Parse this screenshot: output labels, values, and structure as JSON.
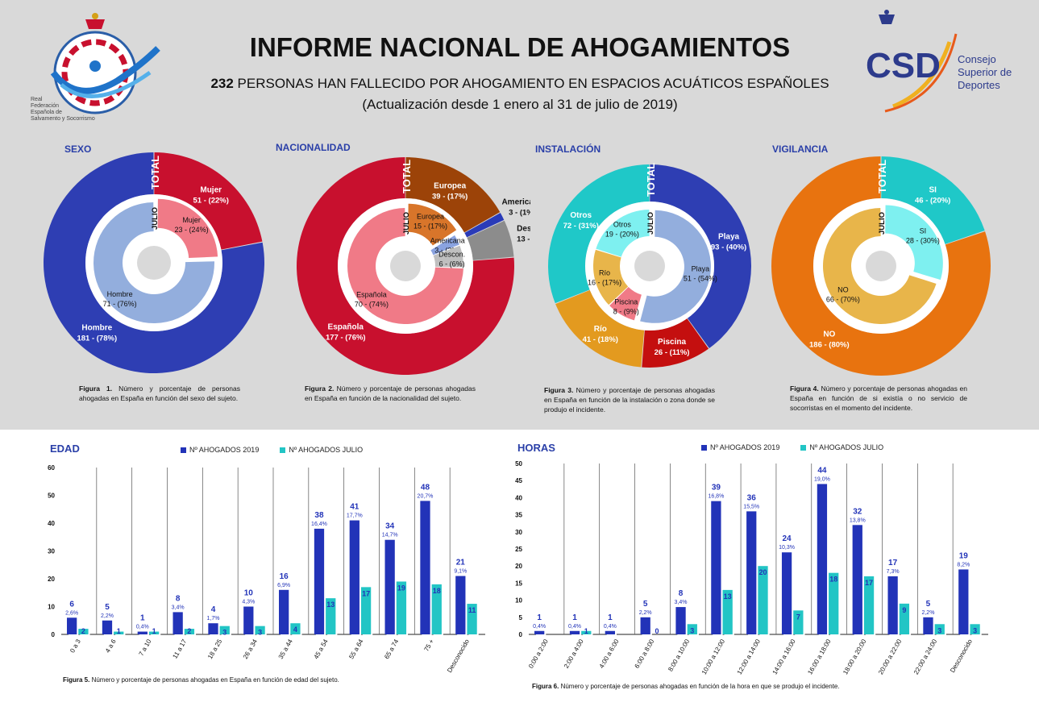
{
  "header": {
    "title": "INFORME NACIONAL DE AHOGAMIENTOS",
    "subtitle_number": "232",
    "subtitle_rest": " PERSONAS HAN FALLECIDO POR AHOGAMIENTO EN ESPACIOS ACUÁTICOS ESPAÑOLES",
    "update": "(Actualización desde 1 enero al 31 de julio de 2019)",
    "left_logo_text": [
      "Real",
      "Federación",
      "Española de",
      "Salvamento y Socorrismo"
    ],
    "left_logo_letters": "RFESS",
    "right_logo_letters": "CSD",
    "right_logo_text": [
      "Consejo",
      "Superior de",
      "Deportes"
    ]
  },
  "colors": {
    "panel": "#d9d9d9",
    "title_blue": "#2a3fa8",
    "bar_2019": "#2233b8",
    "bar_julio": "#22c5c5"
  },
  "chart_data": [
    {
      "type": "pie",
      "title": "SEXO",
      "ring_labels": {
        "outer": "TOTAL",
        "inner": "JULIO"
      },
      "outer": [
        {
          "label": "Mujer",
          "value": 51,
          "pct": "22%",
          "color": "#c8102e"
        },
        {
          "label": "Hombre",
          "value": 181,
          "pct": "78%",
          "color": "#2e3eb3"
        }
      ],
      "inner": [
        {
          "label": "Mujer",
          "value": 23,
          "pct": "24%",
          "color": "#f07a87"
        },
        {
          "label": "Hombre",
          "value": 71,
          "pct": "76%",
          "color": "#93aedd"
        }
      ],
      "caption_bold": "Figura 1.",
      "caption": " Número y porcentaje de personas ahogadas en España en función del sexo del sujeto."
    },
    {
      "type": "pie",
      "title": "NACIONALIDAD",
      "ring_labels": {
        "outer": "TOTAL",
        "inner": "JULIO"
      },
      "outer": [
        {
          "label": "Europea",
          "value": 39,
          "pct": "17%",
          "color": "#9c4308"
        },
        {
          "label": "Americana",
          "value": 3,
          "pct": "1%",
          "color": "#2a3bb8"
        },
        {
          "label": "Descon.",
          "value": 13,
          "pct": "6%",
          "color": "#8c8c8c"
        },
        {
          "label": "Española",
          "value": 177,
          "pct": "76%",
          "color": "#c8102e"
        }
      ],
      "inner": [
        {
          "label": "Europea",
          "value": 15,
          "pct": "17%",
          "color": "#d8752a"
        },
        {
          "label": "Americana",
          "value": 3,
          "pct": "3%",
          "color": "#8aa3e0"
        },
        {
          "label": "Descon.",
          "value": 6,
          "pct": "6%",
          "color": "#bfbfbf"
        },
        {
          "label": "Española",
          "value": 70,
          "pct": "74%",
          "color": "#f07a87"
        }
      ],
      "caption_bold": "Figura 2.",
      "caption": " Número y porcentaje de personas ahogadas en España en función de la nacionalidad del sujeto."
    },
    {
      "type": "pie",
      "title": "INSTALACIÓN",
      "ring_labels": {
        "outer": "TOTAL",
        "inner": "JULIO"
      },
      "outer": [
        {
          "label": "Playa",
          "value": 93,
          "pct": "40%",
          "color": "#2e3eb3"
        },
        {
          "label": "Piscina",
          "value": 26,
          "pct": "11%",
          "color": "#c40f0f"
        },
        {
          "label": "Río",
          "value": 41,
          "pct": "18%",
          "color": "#e39a1f"
        },
        {
          "label": "Otros",
          "value": 72,
          "pct": "31%",
          "color": "#1fc8c8"
        }
      ],
      "inner": [
        {
          "label": "Playa",
          "value": 51,
          "pct": "54%",
          "color": "#93aedd"
        },
        {
          "label": "Piscina",
          "value": 8,
          "pct": "9%",
          "color": "#f07a87"
        },
        {
          "label": "Río",
          "value": 16,
          "pct": "17%",
          "color": "#e8b54a"
        },
        {
          "label": "Otros",
          "value": 19,
          "pct": "20%",
          "color": "#7ef0f0"
        }
      ],
      "caption_bold": "Figura 3.",
      "caption": " Número y porcentaje de personas ahogadas en España en función de la instalación o zona donde se produjo el incidente."
    },
    {
      "type": "pie",
      "title": "VIGILANCIA",
      "ring_labels": {
        "outer": "TOTAL",
        "inner": "JULIO"
      },
      "outer": [
        {
          "label": "SI",
          "value": 46,
          "pct": "20%",
          "color": "#1fc8c8"
        },
        {
          "label": "NO",
          "value": 186,
          "pct": "80%",
          "color": "#e8730f"
        }
      ],
      "inner": [
        {
          "label": "SI",
          "value": 28,
          "pct": "30%",
          "color": "#7ef0f0"
        },
        {
          "label": "NO",
          "value": 66,
          "pct": "70%",
          "color": "#e8b54a"
        }
      ],
      "caption_bold": "Figura 4.",
      "caption": " Número y porcentaje de personas ahogadas en España en función de si existía o no servicio de socorristas en el momento del incidente."
    },
    {
      "type": "bar",
      "title": "EDAD",
      "ylim": [
        0,
        60
      ],
      "yticks": [
        0,
        10,
        20,
        30,
        40,
        50,
        60
      ],
      "categories": [
        "0 a 3",
        "4 a 6",
        "7 a 10",
        "11 a 17",
        "18 a 25",
        "26 a 34",
        "35 a 44",
        "45 a 54",
        "55 a 64",
        "65 a 74",
        "75 +",
        "Desconocido"
      ],
      "series": [
        {
          "name": "Nº AHOGADOS 2019",
          "values": [
            6,
            5,
            1,
            8,
            4,
            10,
            16,
            38,
            41,
            34,
            48,
            21
          ],
          "pct": [
            "2,6%",
            "2,2%",
            "0,4%",
            "3,4%",
            "1,7%",
            "4,3%",
            "6,9%",
            "16,4%",
            "17,7%",
            "14,7%",
            "20,7%",
            "9,1%"
          ]
        },
        {
          "name": "Nº AHOGADOS JULIO",
          "values": [
            2,
            1,
            1,
            2,
            3,
            3,
            4,
            13,
            17,
            19,
            18,
            11
          ]
        }
      ],
      "caption_bold": "Figura 5.",
      "caption": " Número y porcentaje de personas ahogadas en España en función de edad del sujeto."
    },
    {
      "type": "bar",
      "title": "HORAS",
      "ylim": [
        0,
        50
      ],
      "yticks": [
        0,
        5,
        10,
        15,
        20,
        25,
        30,
        35,
        40,
        45,
        50
      ],
      "categories": [
        "0:00 a 2:00",
        "2:00 a 4:00",
        "4:00 a 6:00",
        "6:00 a 8:00",
        "8:00 a 10:00",
        "10:00 a 12:00",
        "12:00 a 14:00",
        "14:00 a 16:00",
        "16:00 a 18:00",
        "18:00 a 20:00",
        "20:00 a 22:00",
        "22:00 a 24:00",
        "Desconocido"
      ],
      "series": [
        {
          "name": "Nº AHOGADOS 2019",
          "values": [
            1,
            1,
            1,
            5,
            8,
            39,
            36,
            24,
            44,
            32,
            17,
            5,
            19
          ],
          "pct": [
            "0,4%",
            "0,4%",
            "0,4%",
            "2,2%",
            "3,4%",
            "16,8%",
            "15,5%",
            "10,3%",
            "19,0%",
            "13,8%",
            "7,3%",
            "2,2%",
            "8,2%"
          ]
        },
        {
          "name": "Nº AHOGADOS JULIO",
          "values": [
            null,
            1,
            null,
            0,
            3,
            13,
            20,
            7,
            18,
            17,
            9,
            3,
            3
          ]
        }
      ],
      "caption_bold": "Figura 6.",
      "caption": " Número y porcentaje de personas ahogadas en función de la hora en que se produjo el incidente."
    }
  ]
}
